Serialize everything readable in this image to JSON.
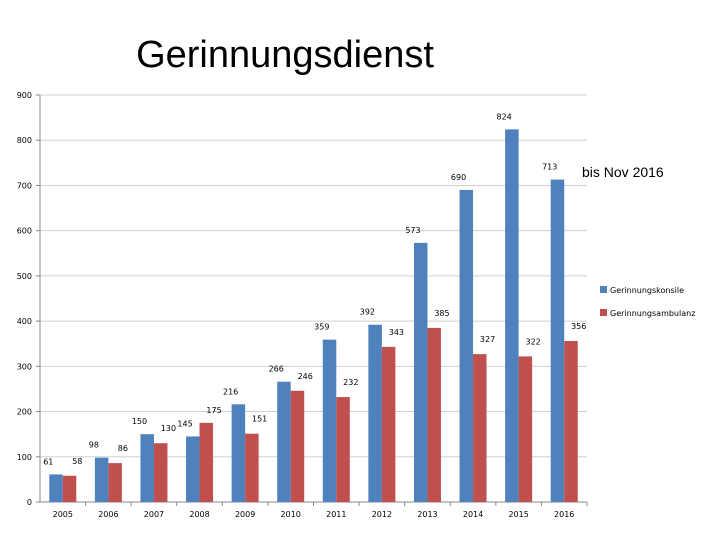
{
  "chart_data": {
    "type": "bar",
    "title": "Gerinnungsdienst",
    "annotation": "bis Nov 2016",
    "categories": [
      "2005",
      "2006",
      "2007",
      "2008",
      "2009",
      "2010",
      "2011",
      "2012",
      "2013",
      "2014",
      "2015",
      "2016"
    ],
    "series": [
      {
        "name": "Gerinnungskonsile",
        "color": "#4f81bd",
        "values": [
          61,
          98,
          150,
          145,
          216,
          266,
          359,
          392,
          573,
          690,
          824,
          713
        ]
      },
      {
        "name": "Gerinnungsambulanz",
        "color": "#c0504d",
        "values": [
          58,
          86,
          130,
          175,
          151,
          246,
          232,
          343,
          385,
          327,
          322,
          356
        ]
      }
    ],
    "yticks": [
      "0",
      "100",
      "200",
      "300",
      "400",
      "500",
      "600",
      "700",
      "800",
      "900"
    ],
    "ylim": [
      0,
      900
    ],
    "grid": true,
    "legend": "right",
    "xlabel": "",
    "ylabel": ""
  }
}
